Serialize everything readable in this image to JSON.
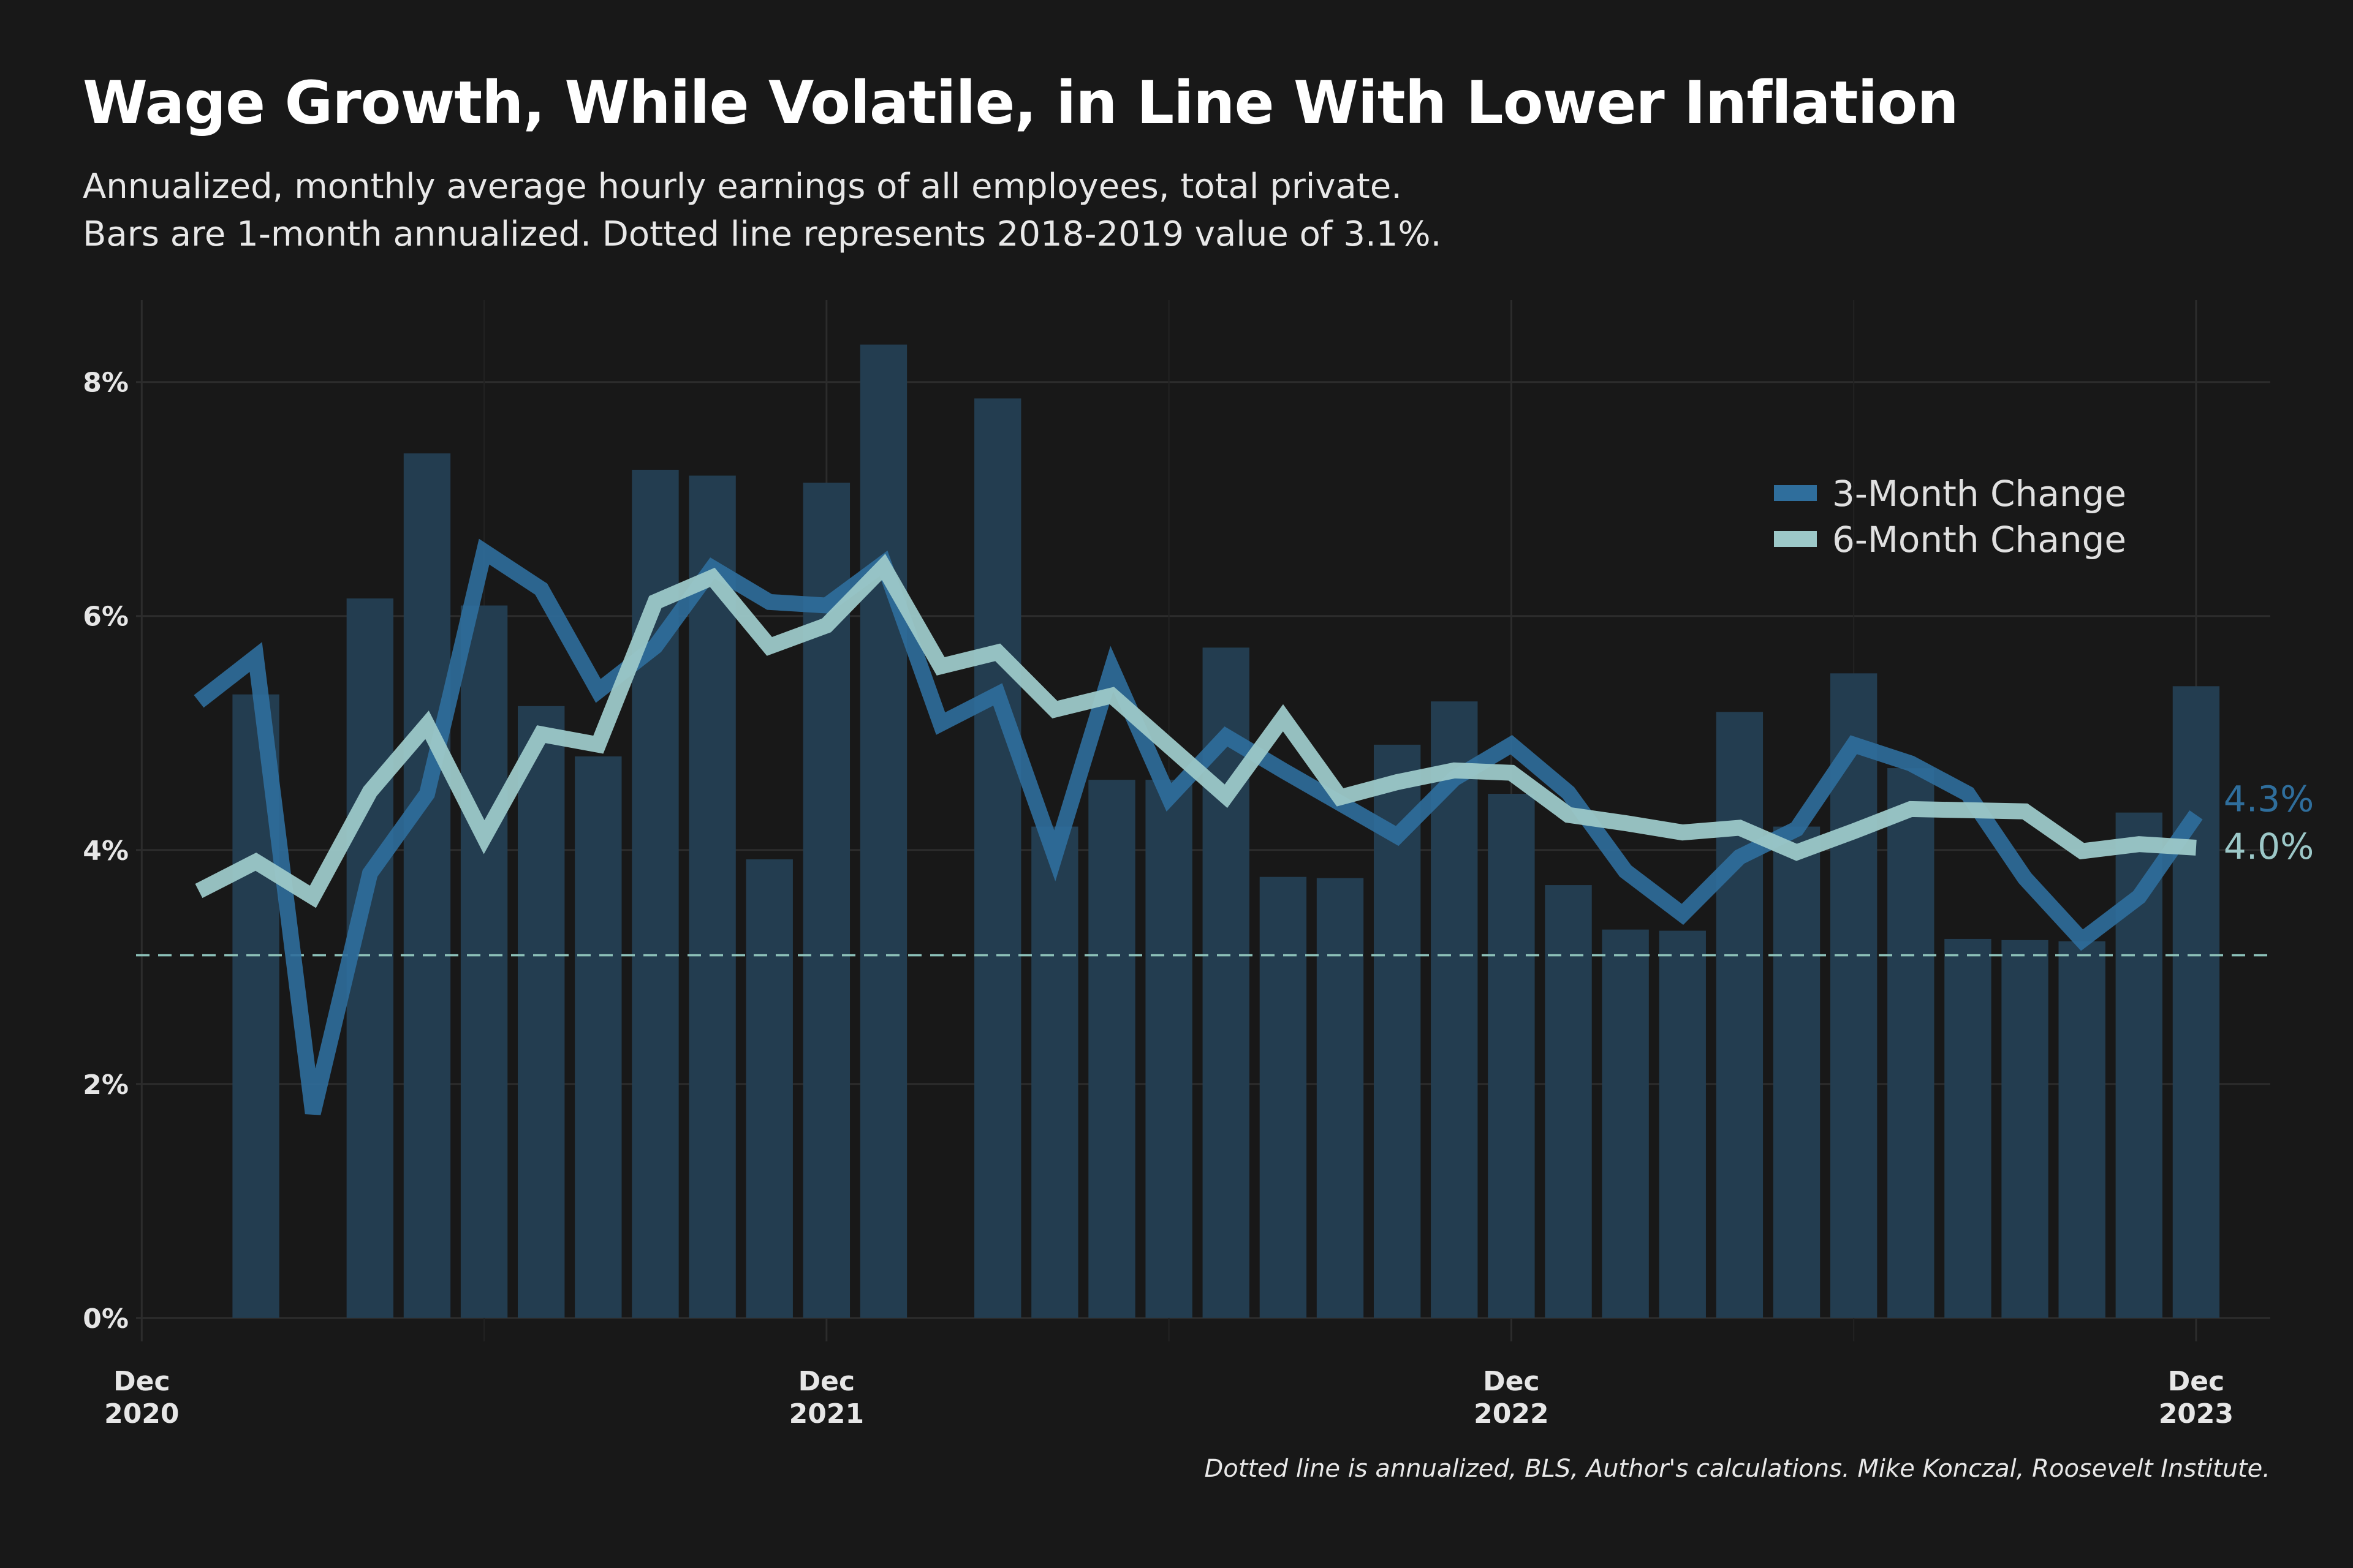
{
  "title": "Wage Growth, While Volatile, in Line With Lower Inflation",
  "subtitle_line1": "Annualized, monthly average hourly earnings of all employees, total private.",
  "subtitle_line2": "Bars are 1-month annualized. Dotted line represents 2018-2019 value of 3.1%.",
  "caption": "Dotted line is annualized, BLS, Author's calculations. Mike Konczal, Roosevelt Institute.",
  "colors": {
    "background": "#181818",
    "bars": "#233d50",
    "three_month": "#2f6e9c",
    "six_month": "#9cc8c8",
    "reference_line": "#8cc0b8",
    "grid": "#2c2c2c"
  },
  "chart_data": {
    "type": "bar",
    "x_start": "Dec 2020",
    "x_end": "Dec 2023",
    "xlim": [
      -0.1,
      37.3
    ],
    "ylim": [
      -0.2,
      8.7
    ],
    "y_ticks": [
      0,
      2,
      4,
      6,
      8
    ],
    "y_tick_labels": [
      "0%",
      "2%",
      "4%",
      "6%",
      "8%"
    ],
    "x_ticks": [
      {
        "month": 0,
        "line1": "Dec",
        "line2": "2020"
      },
      {
        "month": 12,
        "line1": "Dec",
        "line2": "2021"
      },
      {
        "month": 24,
        "line1": "Dec",
        "line2": "2022"
      },
      {
        "month": 36,
        "line1": "Dec",
        "line2": "2023"
      }
    ],
    "x_minor_ticks": [
      6,
      18,
      30
    ],
    "bars": {
      "name": "1-Month Annualized",
      "values": [
        null,
        5.33,
        null,
        6.15,
        7.39,
        6.09,
        5.23,
        4.8,
        7.25,
        7.2,
        3.92,
        7.14,
        8.32,
        null,
        7.86,
        4.2,
        4.6,
        4.6,
        5.73,
        3.77,
        3.76,
        4.9,
        5.27,
        4.48,
        3.7,
        3.32,
        3.31,
        5.18,
        4.2,
        5.51,
        4.7,
        3.24,
        3.23,
        3.22,
        4.32,
        5.4
      ]
    },
    "series": [
      {
        "name": "3-Month Change",
        "values": [
          5.27,
          5.65,
          1.75,
          3.8,
          4.48,
          6.55,
          6.23,
          5.36,
          5.74,
          6.41,
          6.12,
          6.09,
          6.45,
          5.08,
          5.33,
          3.95,
          5.55,
          4.45,
          4.97,
          4.68,
          4.4,
          4.12,
          4.61,
          4.9,
          4.49,
          3.82,
          3.45,
          3.94,
          4.18,
          4.9,
          4.74,
          4.48,
          3.76,
          3.23,
          3.6,
          4.3
        ]
      },
      {
        "name": "6-Month Change",
        "values": [
          3.65,
          3.9,
          3.6,
          4.5,
          5.07,
          4.11,
          4.99,
          4.9,
          6.12,
          6.33,
          5.74,
          5.92,
          6.42,
          5.57,
          5.69,
          5.2,
          5.32,
          4.89,
          4.46,
          5.13,
          4.45,
          4.58,
          4.68,
          4.66,
          4.3,
          4.23,
          4.15,
          4.19,
          3.98,
          4.16,
          4.35,
          4.34,
          4.33,
          3.99,
          4.05,
          4.02
        ]
      }
    ],
    "reference_line": {
      "value": 3.1
    },
    "end_labels": [
      "4.3%",
      "4.0%"
    ],
    "legend": {
      "position": "top-right",
      "entries": [
        "3-Month Change",
        "6-Month Change"
      ]
    },
    "grid": true
  }
}
